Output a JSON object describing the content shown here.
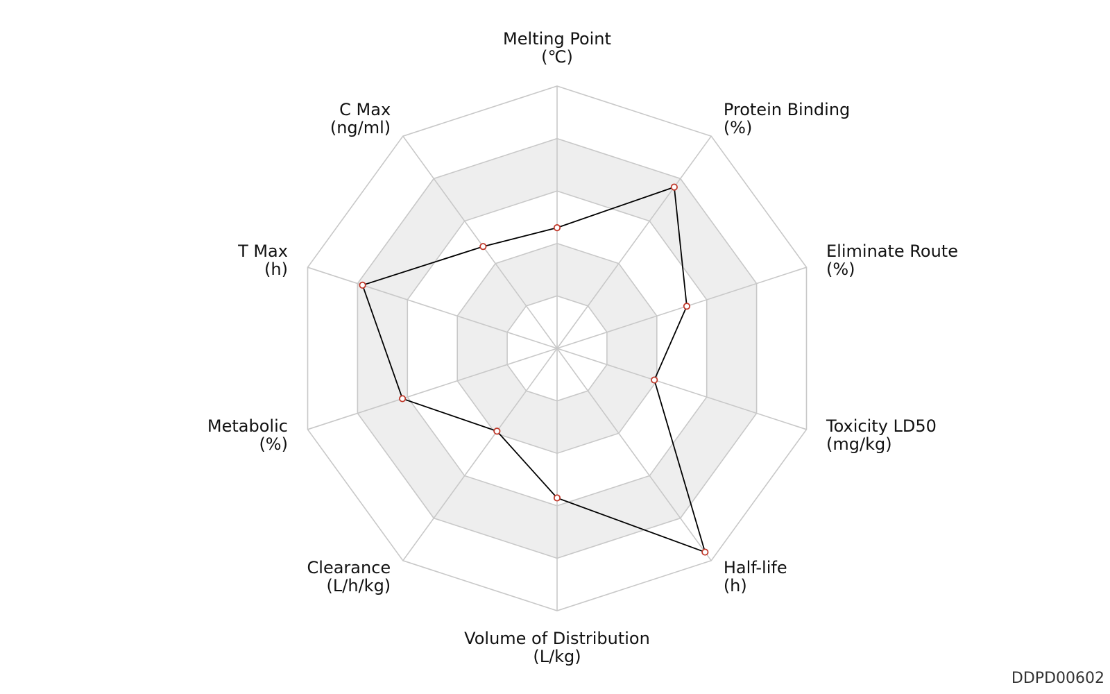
{
  "chart_data": {
    "type": "radar",
    "title": "",
    "axes": [
      {
        "name": "Melting Point",
        "unit": "(℃)"
      },
      {
        "name": "Protein Binding",
        "unit": "(%)"
      },
      {
        "name": "Eliminate Route",
        "unit": "(%)"
      },
      {
        "name": "Toxicity LD50",
        "unit": "(mg/kg)"
      },
      {
        "name": "Half-life",
        "unit": "(h)"
      },
      {
        "name": "Volume of Distribution",
        "unit": "(L/kg)"
      },
      {
        "name": "Clearance",
        "unit": "(L/h/kg)"
      },
      {
        "name": "Metabolic",
        "unit": "(%)"
      },
      {
        "name": "T Max",
        "unit": "(h)"
      },
      {
        "name": "C Max",
        "unit": "(ng/ml)"
      }
    ],
    "rings": 5,
    "range": [
      0,
      1
    ],
    "series": [
      {
        "values": [
          0.46,
          0.76,
          0.52,
          0.39,
          0.96,
          0.57,
          0.39,
          0.62,
          0.78,
          0.48
        ]
      }
    ],
    "colors": {
      "series_line": "#000000",
      "marker_edge": "#c0392b",
      "marker_fill": "#ffffff",
      "grid_line": "#c8c8c8",
      "band_fill": "#eeeeee"
    }
  },
  "watermark": "DDPD00602"
}
